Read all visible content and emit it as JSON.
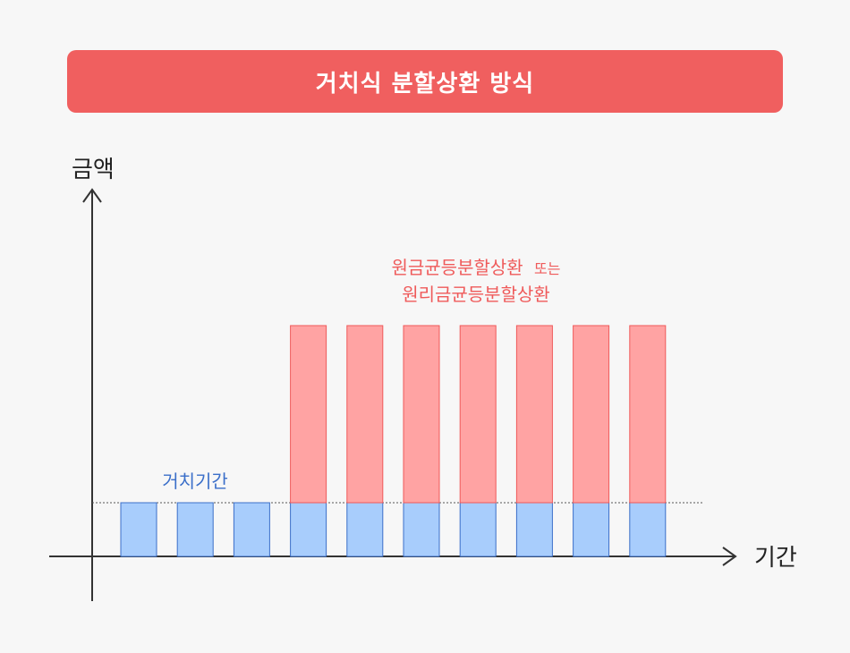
{
  "banner": {
    "title": "거치식 분할상환 방식"
  },
  "axes": {
    "y_label": "금액",
    "x_label": "기간"
  },
  "labels": {
    "grace": "거치기간",
    "repay_line1": "원금균등분할상환",
    "repay_line1_small": "또는",
    "repay_line2": "원리금균등분할상환"
  },
  "colors": {
    "banner": "#f05f5f",
    "interest": "#a8cdfc",
    "interest_stroke": "#3b6fc9",
    "principal": "#ffa3a3",
    "principal_stroke": "#ef5a5a"
  },
  "chart_data": {
    "type": "bar",
    "periods": 10,
    "series": [
      {
        "name": "거치기간",
        "values": [
          1,
          1,
          1,
          1,
          1,
          1,
          1,
          1,
          1,
          1
        ]
      },
      {
        "values": [
          0,
          0,
          0,
          3.3,
          3.3,
          3.3,
          3.3,
          3.3,
          3.3,
          3.3
        ]
      }
    ]
  }
}
